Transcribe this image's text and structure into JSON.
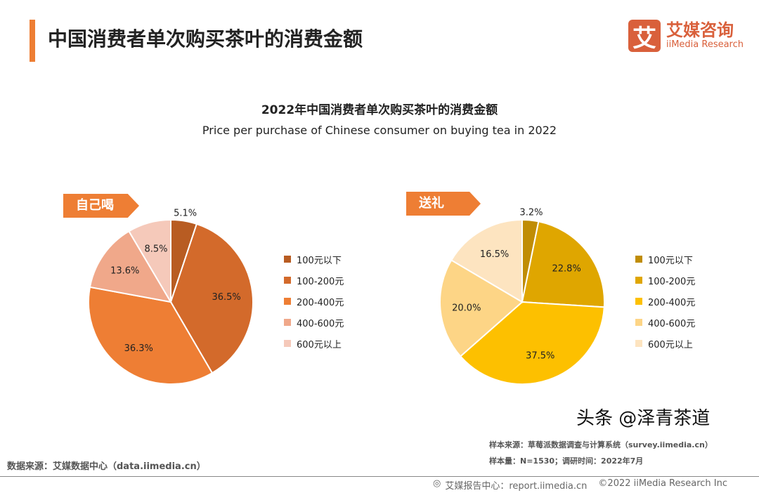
{
  "header": {
    "title": "中国消费者单次购买茶叶的消费金额",
    "logo_mark": "艾",
    "logo_cn": "艾媒咨询",
    "logo_en": "iiMedia Research"
  },
  "chart_data": [
    {
      "type": "pie",
      "title": "2022年中国消费者单次购买茶叶的消费金额",
      "subtitle": "Price per purchase of Chinese consumer on buying tea in 2022",
      "tag": "自己喝",
      "categories": [
        "100元以下",
        "100-200元",
        "200-400元",
        "400-600元",
        "600元以上"
      ],
      "values": [
        5.1,
        36.5,
        36.3,
        13.6,
        8.5
      ],
      "labels": [
        "5.1%",
        "36.5%",
        "36.3%",
        "13.6%",
        "8.5%"
      ],
      "colors": [
        "#b85c22",
        "#d36a2b",
        "#ee7e34",
        "#f0a88a",
        "#f5c9ba"
      ],
      "tag_color": "#ee7e34"
    },
    {
      "type": "pie",
      "tag": "送礼",
      "categories": [
        "100元以下",
        "100-200元",
        "200-400元",
        "400-600元",
        "600元以上"
      ],
      "values": [
        3.2,
        22.8,
        37.5,
        20.0,
        16.5
      ],
      "labels": [
        "3.2%",
        "22.8%",
        "37.5%",
        "20.0%",
        "16.5%"
      ],
      "colors": [
        "#c08d05",
        "#dfa600",
        "#fdc000",
        "#fdd586",
        "#fde4c0"
      ],
      "tag_color": "#ee7e34"
    }
  ],
  "footer": {
    "data_source": "数据来源：艾媒数据中心（data.iimedia.cn）",
    "sample_source": "样本来源：草莓派数据调查与计算系统（survey.iimedia.cn）",
    "sample_size": "样本量：N=1530；调研时间：2022年7月",
    "report_center": "艾媒报告中心：report.iimedia.cn",
    "copyright": "©2022  iiMedia Research  Inc",
    "watermark": "头条 @泽青茶道"
  }
}
